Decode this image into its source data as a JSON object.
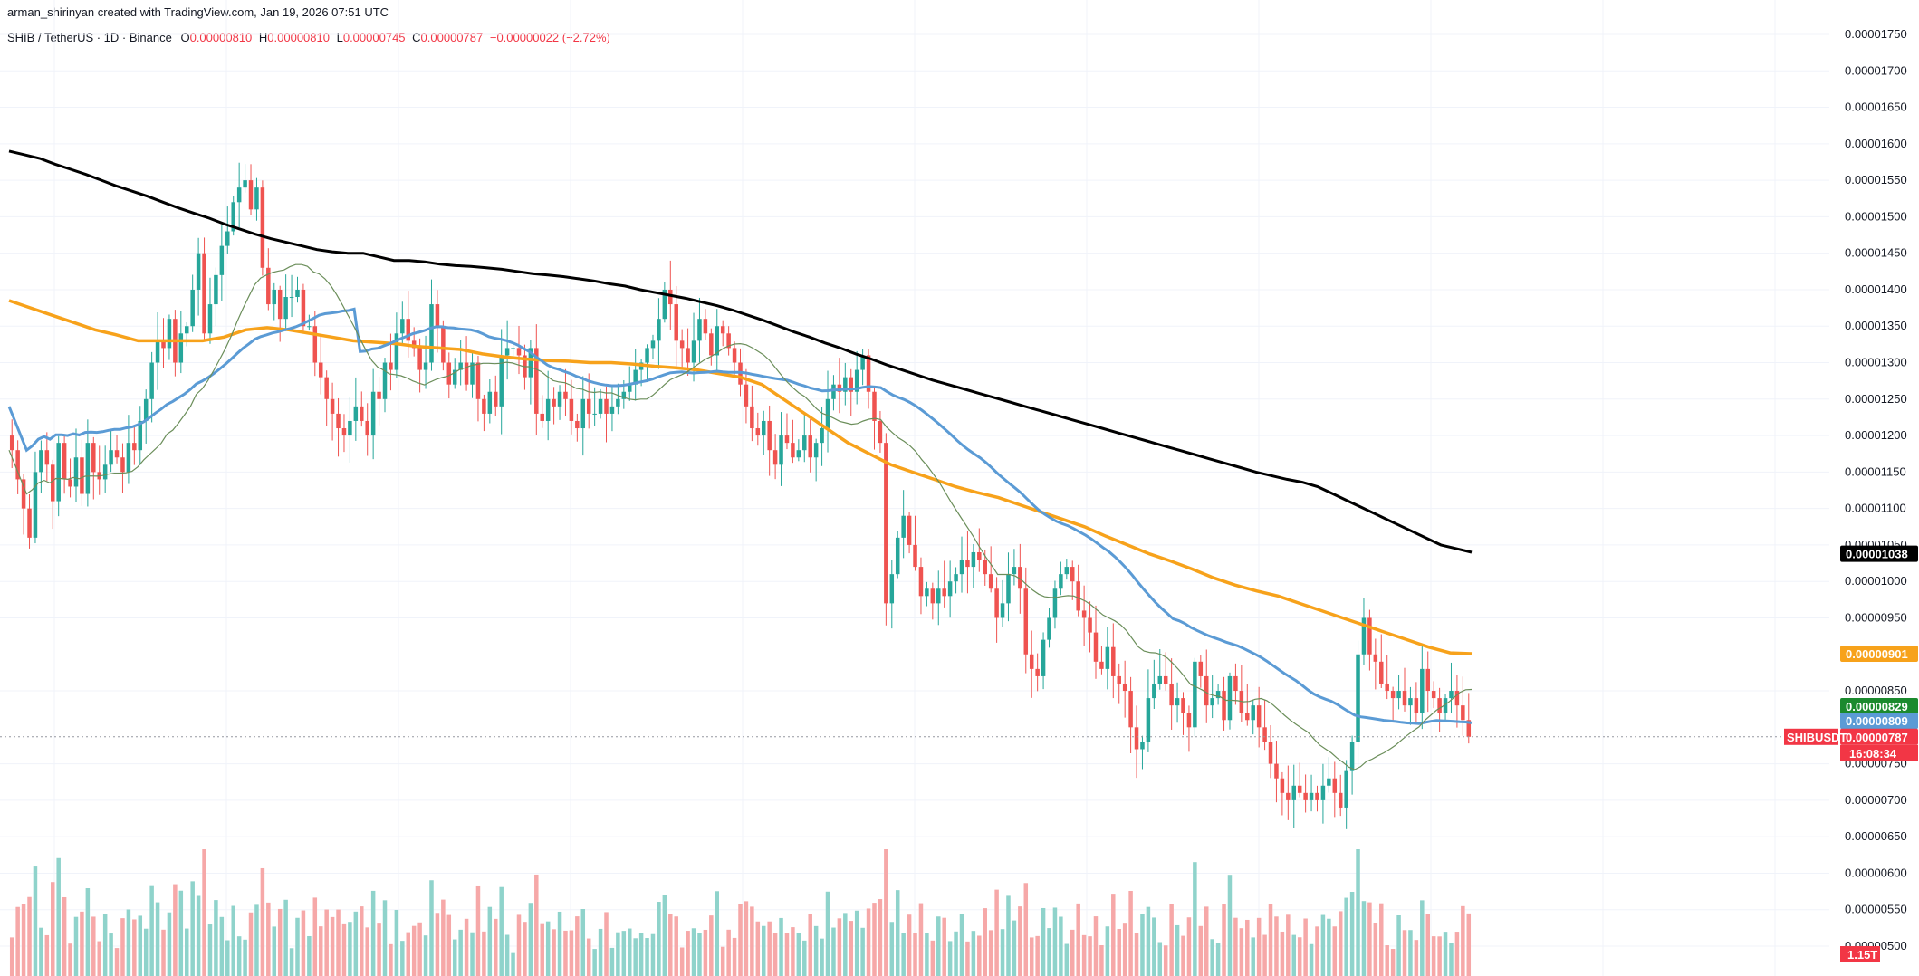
{
  "header": {
    "attribution": "arman_shirinyan created with TradingView.com, Jan 19, 2026 07:51 UTC"
  },
  "legend": {
    "symbol": "SHIB / TetherUS · 1D · Binance",
    "o_label": "O",
    "o_value": "0.00000810",
    "h_label": "H",
    "h_value": "0.00000810",
    "l_label": "L",
    "l_value": "0.00000745",
    "c_label": "C",
    "c_value": "0.00000787",
    "change": "−0.00000022 (−2.72%)"
  },
  "colors": {
    "up": "#26a69a",
    "down": "#ef5350",
    "ma200": "#000000",
    "ma100": "#f7a21b",
    "ma50": "#5b9bd5",
    "ma20": "#6b8e5a",
    "vol_up": "#8fd3cb",
    "vol_down": "#f6a8a8"
  },
  "chart_data": {
    "type": "candlestick",
    "title": "SHIB / TetherUS · 1D · Binance",
    "ylim": [
      4.5e-06,
      1.775e-05
    ],
    "y_ticks": [
      "0.00001750",
      "0.00001700",
      "0.00001650",
      "0.00001600",
      "0.00001550",
      "0.00001500",
      "0.00001450",
      "0.00001400",
      "0.00001350",
      "0.00001300",
      "0.00001250",
      "0.00001200",
      "0.00001150",
      "0.00001100",
      "0.00001050",
      "0.00001000",
      "0.00000950",
      "0.00000850",
      "0.00000750",
      "0.00000700",
      "0.00000650",
      "0.00000600",
      "0.00000550",
      "0.00000500"
    ],
    "y_tick_values": [
      17.5,
      17.0,
      16.5,
      16.0,
      15.5,
      15.0,
      14.5,
      14.0,
      13.5,
      13.0,
      12.5,
      12.0,
      11.5,
      11.0,
      10.5,
      10.0,
      9.5,
      8.5,
      7.5,
      7.0,
      6.5,
      6.0,
      5.5,
      5.0
    ],
    "price_unit_note": "values in series below are x 1e-6",
    "close": [
      11.8,
      11.4,
      11.0,
      10.6,
      11.5,
      11.8,
      11.6,
      11.1,
      11.9,
      11.4,
      11.3,
      11.7,
      11.2,
      11.9,
      11.5,
      11.4,
      11.6,
      11.8,
      11.7,
      11.5,
      11.9,
      11.8,
      12.2,
      12.5,
      13.0,
      13.3,
      13.2,
      13.6,
      13.0,
      13.4,
      13.5,
      14.0,
      14.5,
      13.4,
      13.8,
      14.2,
      14.6,
      14.8,
      15.2,
      15.4,
      15.5,
      15.1,
      15.4,
      14.3,
      13.8,
      14.0,
      13.6,
      13.9,
      13.9,
      14.0,
      13.5,
      13.5,
      13.0,
      12.8,
      12.5,
      12.3,
      12.1,
      12.0,
      12.2,
      12.4,
      12.2,
      12.0,
      12.6,
      12.5,
      13.0,
      12.9,
      13.4,
      13.6,
      13.3,
      13.2,
      12.9,
      13.0,
      13.8,
      13.5,
      13.0,
      12.7,
      12.9,
      13.0,
      12.7,
      13.0,
      12.5,
      12.3,
      12.6,
      12.4,
      13.1,
      13.2,
      13.2,
      13.1,
      12.8,
      13.2,
      12.3,
      12.2,
      12.5,
      12.4,
      12.6,
      12.5,
      12.2,
      12.1,
      12.5,
      12.3,
      12.3,
      12.5,
      12.3,
      12.4,
      12.5,
      12.6,
      12.7,
      12.9,
      13.0,
      13.2,
      13.3,
      13.6,
      14.0,
      13.8,
      13.3,
      13.2,
      13.0,
      13.3,
      13.6,
      13.4,
      13.1,
      13.5,
      13.4,
      13.2,
      13.0,
      12.7,
      12.4,
      12.1,
      12.0,
      12.2,
      11.8,
      11.6,
      12.0,
      11.9,
      11.7,
      11.8,
      12.0,
      11.7,
      11.9,
      12.1,
      12.5,
      12.7,
      12.6,
      12.8,
      12.6,
      12.9,
      13.1,
      12.6,
      12.2,
      11.9,
      9.7,
      10.1,
      10.6,
      10.9,
      10.5,
      10.2,
      9.8,
      9.9,
      9.7,
      9.9,
      9.8,
      10.0,
      10.1,
      10.3,
      10.2,
      10.4,
      10.3,
      10.1,
      9.9,
      9.5,
      9.7,
      10.1,
      10.2,
      9.9,
      9.0,
      8.8,
      8.7,
      9.2,
      9.5,
      9.9,
      10.1,
      10.2,
      10.0,
      9.6,
      9.5,
      9.3,
      8.9,
      8.8,
      9.1,
      8.7,
      8.6,
      8.5,
      8.0,
      7.7,
      7.8,
      8.4,
      8.6,
      8.7,
      8.6,
      8.3,
      8.4,
      8.2,
      8.0,
      8.9,
      8.7,
      8.3,
      8.4,
      8.5,
      8.1,
      8.7,
      8.5,
      8.2,
      8.1,
      8.3,
      8.0,
      7.8,
      7.5,
      7.3,
      7.1,
      7.0,
      7.2,
      7.1,
      7.0,
      7.1,
      7.0,
      7.2,
      7.3,
      7.1,
      6.9,
      7.4,
      7.8,
      9.0,
      9.5,
      9.0,
      8.9,
      8.6,
      8.5,
      8.4,
      8.5,
      8.3,
      8.4,
      8.2,
      8.8,
      8.5,
      8.4,
      8.2,
      8.4,
      8.5,
      8.3,
      8.1,
      7.87
    ],
    "ma200": [
      15.9,
      15.85,
      15.8,
      15.72,
      15.65,
      15.58,
      15.5,
      15.42,
      15.35,
      15.28,
      15.2,
      15.12,
      15.05,
      14.98,
      14.9,
      14.83,
      14.76,
      14.7,
      14.65,
      14.6,
      14.55,
      14.52,
      14.5,
      14.5,
      14.45,
      14.4,
      14.4,
      14.38,
      14.35,
      14.33,
      14.32,
      14.3,
      14.28,
      14.25,
      14.22,
      14.2,
      14.18,
      14.15,
      14.12,
      14.08,
      14.05,
      14.0,
      13.96,
      13.92,
      13.88,
      13.83,
      13.78,
      13.72,
      13.65,
      13.58,
      13.5,
      13.42,
      13.35,
      13.27,
      13.2,
      13.12,
      13.05,
      12.97,
      12.9,
      12.83,
      12.76,
      12.7,
      12.64,
      12.58,
      12.52,
      12.46,
      12.4,
      12.34,
      12.28,
      12.22,
      12.16,
      12.1,
      12.04,
      11.98,
      11.92,
      11.86,
      11.8,
      11.74,
      11.68,
      11.62,
      11.56,
      11.5,
      11.45,
      11.4,
      11.36,
      11.3,
      11.2,
      11.1,
      11.0,
      10.9,
      10.8,
      10.7,
      10.6,
      10.5,
      10.45,
      10.4
    ],
    "ma100": [
      13.85,
      13.75,
      13.65,
      13.55,
      13.45,
      13.38,
      13.3,
      13.3,
      13.3,
      13.3,
      13.35,
      13.45,
      13.48,
      13.45,
      13.4,
      13.35,
      13.3,
      13.28,
      13.26,
      13.22,
      13.2,
      13.18,
      13.12,
      13.08,
      13.05,
      13.03,
      13.02,
      13.0,
      13.0,
      12.98,
      12.95,
      12.93,
      12.9,
      12.85,
      12.8,
      12.7,
      12.5,
      12.3,
      12.1,
      11.9,
      11.75,
      11.6,
      11.5,
      11.4,
      11.3,
      11.22,
      11.15,
      11.05,
      10.95,
      10.85,
      10.75,
      10.62,
      10.5,
      10.38,
      10.28,
      10.17,
      10.05,
      9.95,
      9.87,
      9.8,
      9.7,
      9.6,
      9.5,
      9.4,
      9.3,
      9.2,
      9.1,
      9.02,
      9.01
    ],
    "volume_note": "volume bars shown; bottom-right label",
    "volume_label": "1.15T",
    "price_badges": {
      "ma200": "0.00001038",
      "ma100": "0.00000901",
      "ma20": "0.00000829",
      "ma50": "0.00000809",
      "symbol": "SHIBUSDT",
      "last": "0.00000787",
      "countdown": "16:08:34"
    }
  }
}
